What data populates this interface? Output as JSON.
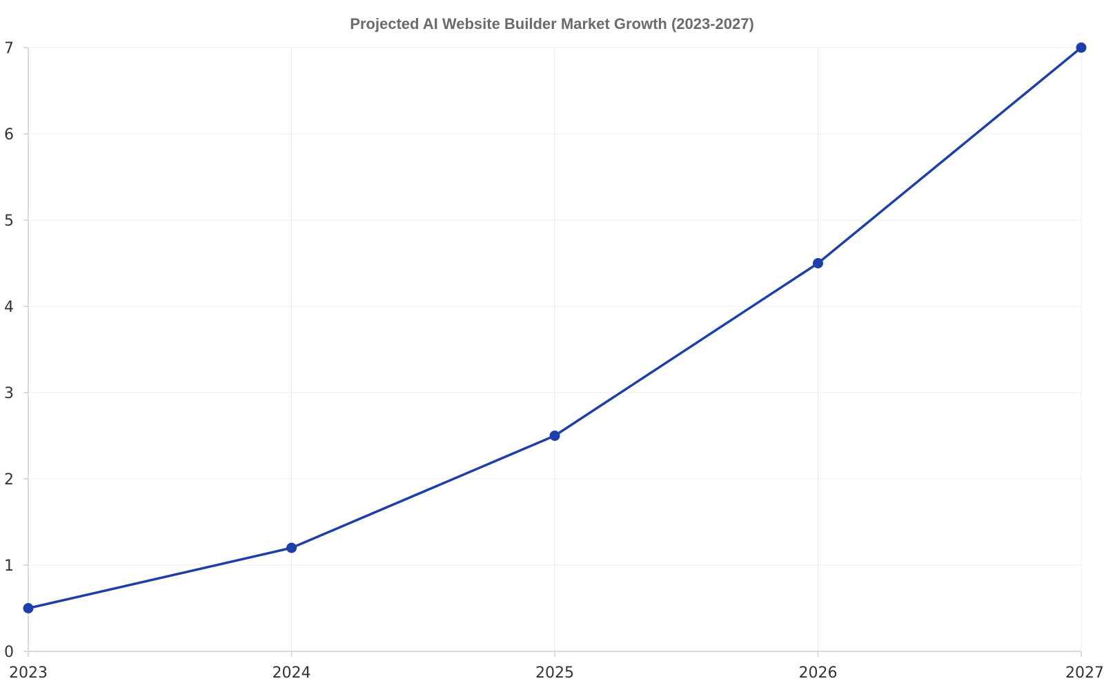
{
  "chart_data": {
    "type": "line",
    "title": "Projected AI Website Builder Market Growth (2023-2027)",
    "xlabel": "",
    "ylabel": "",
    "x": [
      "2023",
      "2024",
      "2025",
      "2026",
      "2027"
    ],
    "series": [
      {
        "values": [
          0.5,
          1.2,
          2.5,
          4.5,
          7.0
        ],
        "color": "#1f3fa8"
      }
    ],
    "ylim": [
      0,
      7
    ],
    "yticks": [
      0,
      1,
      2,
      3,
      4,
      5,
      6,
      7
    ],
    "grid": true,
    "legend": "none"
  }
}
